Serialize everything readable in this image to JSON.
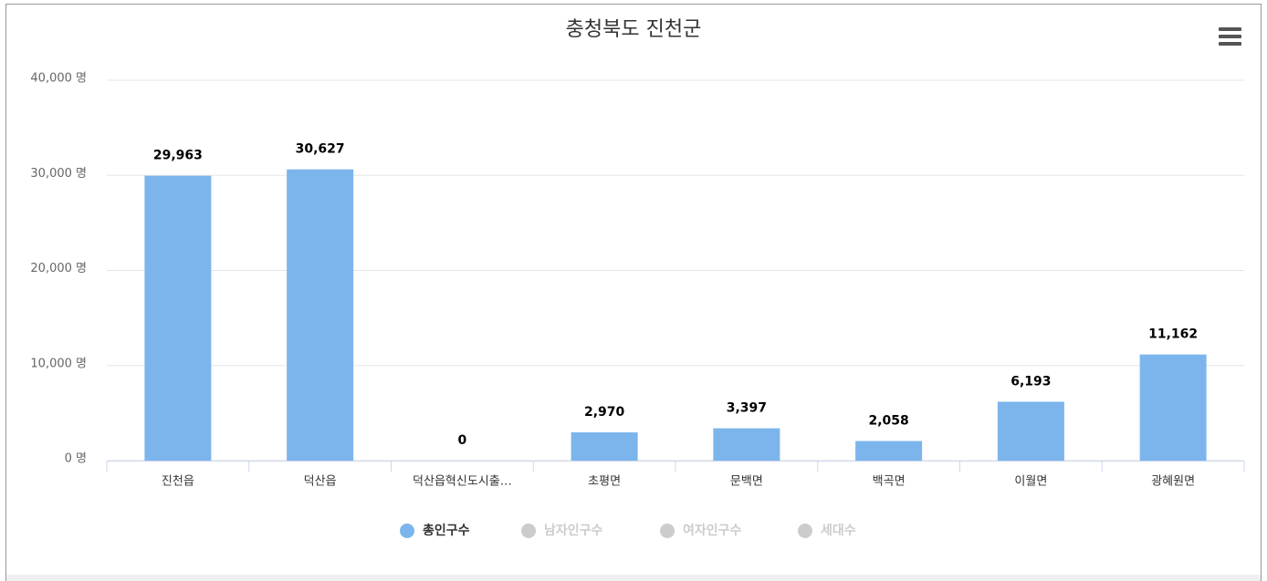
{
  "chart_data": {
    "type": "bar",
    "title": "충청북도 진천군",
    "categories": [
      "진천읍",
      "덕산읍",
      "덕산읍혁신도시출…",
      "초평면",
      "문백면",
      "백곡면",
      "이월면",
      "광혜원면"
    ],
    "series": [
      {
        "name": "총인구수",
        "color": "#7cb5ec",
        "visible": true,
        "values": [
          29963,
          30627,
          0,
          2970,
          3397,
          2058,
          6193,
          11162
        ],
        "value_labels": [
          "29,963",
          "30,627",
          "0",
          "2,970",
          "3,397",
          "2,058",
          "6,193",
          "11,162"
        ]
      },
      {
        "name": "남자인구수",
        "color": "#cccccc",
        "visible": false
      },
      {
        "name": "여자인구수",
        "color": "#cccccc",
        "visible": false
      },
      {
        "name": "세대수",
        "color": "#cccccc",
        "visible": false
      }
    ],
    "ylim": [
      0,
      40000
    ],
    "yticks": [
      {
        "value": 0,
        "label": "0 명"
      },
      {
        "value": 10000,
        "label": "10,000 명"
      },
      {
        "value": 20000,
        "label": "20,000 명"
      },
      {
        "value": 30000,
        "label": "30,000 명"
      },
      {
        "value": 40000,
        "label": "40,000 명"
      }
    ],
    "grid": true
  }
}
